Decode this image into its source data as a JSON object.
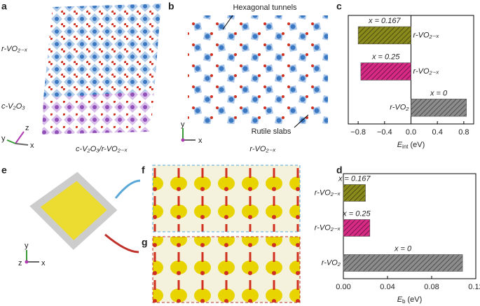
{
  "chart_data": [
    {
      "type": "bar",
      "orientation": "horizontal",
      "panel": "c",
      "categories": [
        "r-VO₂₋ₓ",
        "r-VO₂₋ₓ",
        "r-VO₂"
      ],
      "values": [
        -0.8,
        -0.76,
        0.84
      ],
      "colors": [
        "#8a8a1c",
        "#d62a85",
        "#8c8c8c"
      ],
      "annotations": [
        "x = 0.167",
        "x = 0.25",
        "x = 0"
      ],
      "hatch": true,
      "xlim": [
        -0.95,
        0.95
      ],
      "xticks": [
        {
          "value": -0.8,
          "label": "−0.8"
        },
        {
          "value": -0.4,
          "label": "−0.4"
        },
        {
          "value": 0,
          "label": "0.0"
        },
        0.4,
        0.8
      ],
      "xlabel": "E",
      "xlabel_sub": "int",
      "xlabel_unit": "(eV)"
    },
    {
      "type": "bar",
      "orientation": "horizontal",
      "panel": "d",
      "categories": [
        "r-VO₂₋ₓ",
        "r-VO₂₋ₓ",
        "r-VO₂"
      ],
      "values": [
        0.02,
        0.024,
        0.108
      ],
      "colors": [
        "#8a8a1c",
        "#d62a85",
        "#8c8c8c"
      ],
      "annotations": [
        "x = 0.167",
        "x = 0.25",
        "x = 0"
      ],
      "hatch": true,
      "xlim": [
        0,
        0.12
      ],
      "xticks": [
        {
          "value": 0,
          "label": "0.00"
        },
        0.04,
        0.08,
        0.12
      ],
      "xlabel": "E",
      "xlabel_sub": "b",
      "xlabel_unit": "(eV)"
    }
  ],
  "panels": {
    "a": {
      "label": "a",
      "top": "r-VO₂₋ₓ",
      "bottom": "c-V₂O₃",
      "caption": "c-V₂O₃/r-VO₂₋ₓ",
      "axes": [
        "z",
        "y",
        "x"
      ]
    },
    "b": {
      "label": "b",
      "tunnels": "Hexagonal tunnels",
      "slabs": "Rutile slabs",
      "caption": "r-VO₂₋ₓ",
      "axes": [
        "y",
        "x"
      ]
    },
    "e": {
      "label": "e",
      "axes": [
        "y",
        "z",
        "x"
      ]
    },
    "f": {
      "label": "f"
    },
    "g": {
      "label": "g"
    }
  }
}
